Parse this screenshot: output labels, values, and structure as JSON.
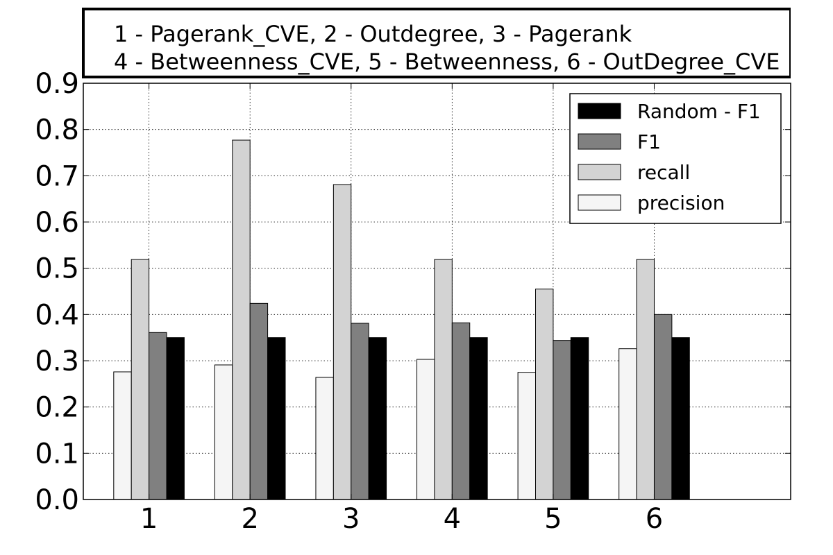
{
  "caption": {
    "line1": "1 - Pagerank_CVE, 2 - Outdegree, 3 - Pagerank",
    "line2": "4 - Betweenness_CVE, 5 - Betweenness, 6 - OutDegree_CVE"
  },
  "chart_data": {
    "type": "bar",
    "title": "",
    "xlabel": "",
    "ylabel": "",
    "categories": [
      "1",
      "2",
      "3",
      "4",
      "5",
      "6"
    ],
    "ylim": [
      0.0,
      0.9
    ],
    "yticks": [
      "0.0",
      "0.1",
      "0.2",
      "0.3",
      "0.4",
      "0.5",
      "0.6",
      "0.7",
      "0.8",
      "0.9"
    ],
    "grid": true,
    "legend_position": "top-right",
    "series": [
      {
        "name": "precision",
        "color": "#f5f5f5",
        "values": [
          0.276,
          0.291,
          0.264,
          0.303,
          0.275,
          0.326
        ]
      },
      {
        "name": "recall",
        "color": "#d3d3d3",
        "values": [
          0.519,
          0.777,
          0.681,
          0.519,
          0.455,
          0.519
        ]
      },
      {
        "name": "F1",
        "color": "#808080",
        "values": [
          0.361,
          0.424,
          0.381,
          0.382,
          0.344,
          0.4
        ]
      },
      {
        "name": "Random - F1",
        "color": "#000000",
        "values": [
          0.35,
          0.35,
          0.35,
          0.35,
          0.35,
          0.35
        ]
      }
    ],
    "legend_order": [
      "Random - F1",
      "F1",
      "recall",
      "precision"
    ]
  }
}
